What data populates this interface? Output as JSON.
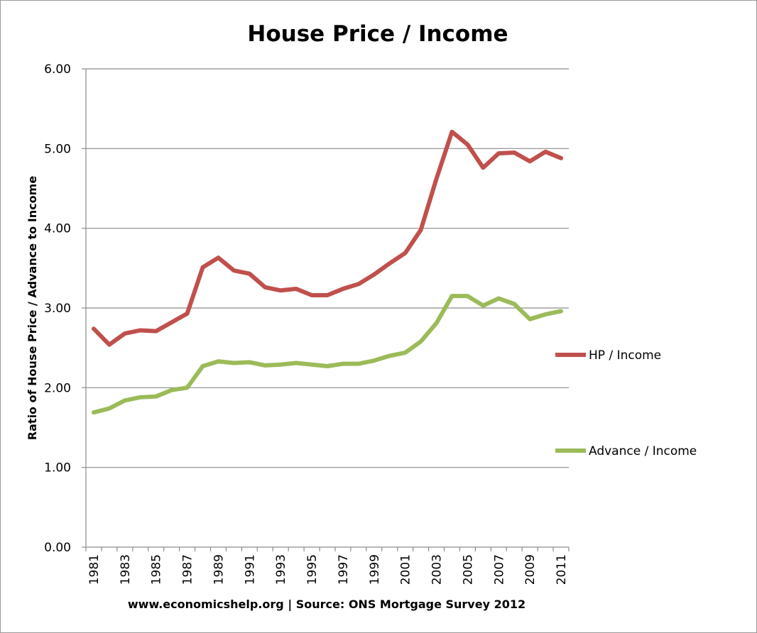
{
  "chart_data": {
    "type": "line",
    "title": "House Price / Income",
    "ylabel": "Ratio of House Price / Advance to Income",
    "xlabel": "",
    "source": "www.economicshelp.org | Source: ONS Mortgage Survey 2012",
    "ylim": [
      0,
      6
    ],
    "y_ticks": [
      "0.00",
      "1.00",
      "2.00",
      "3.00",
      "4.00",
      "5.00",
      "6.00"
    ],
    "x": [
      1981,
      1982,
      1983,
      1984,
      1985,
      1986,
      1987,
      1988,
      1989,
      1990,
      1991,
      1992,
      1993,
      1994,
      1995,
      1996,
      1997,
      1998,
      1999,
      2000,
      2001,
      2002,
      2003,
      2004,
      2005,
      2006,
      2007,
      2008,
      2009,
      2010,
      2011
    ],
    "x_tick_labels": [
      "1981",
      "1983",
      "1985",
      "1987",
      "1989",
      "1991",
      "1993",
      "1995",
      "1997",
      "1999",
      "2001",
      "2003",
      "2005",
      "2007",
      "2009",
      "2011"
    ],
    "grid": true,
    "legend_position": "right",
    "series": [
      {
        "name": "HP / Income",
        "color": "#c0504d",
        "values": [
          2.74,
          2.54,
          2.68,
          2.72,
          2.71,
          2.82,
          2.93,
          3.51,
          3.63,
          3.47,
          3.43,
          3.26,
          3.22,
          3.24,
          3.16,
          3.16,
          3.24,
          3.3,
          3.42,
          3.56,
          3.69,
          3.98,
          4.62,
          5.21,
          5.05,
          4.76,
          4.94,
          4.95,
          4.84,
          4.96,
          4.88
        ]
      },
      {
        "name": "Advance / Income",
        "color": "#9bbb59",
        "values": [
          1.69,
          1.74,
          1.84,
          1.88,
          1.89,
          1.97,
          2.0,
          2.27,
          2.33,
          2.31,
          2.32,
          2.28,
          2.29,
          2.31,
          2.29,
          2.27,
          2.3,
          2.3,
          2.34,
          2.4,
          2.44,
          2.58,
          2.81,
          3.15,
          3.15,
          3.03,
          3.12,
          3.05,
          2.86,
          2.92,
          2.96
        ]
      }
    ]
  }
}
